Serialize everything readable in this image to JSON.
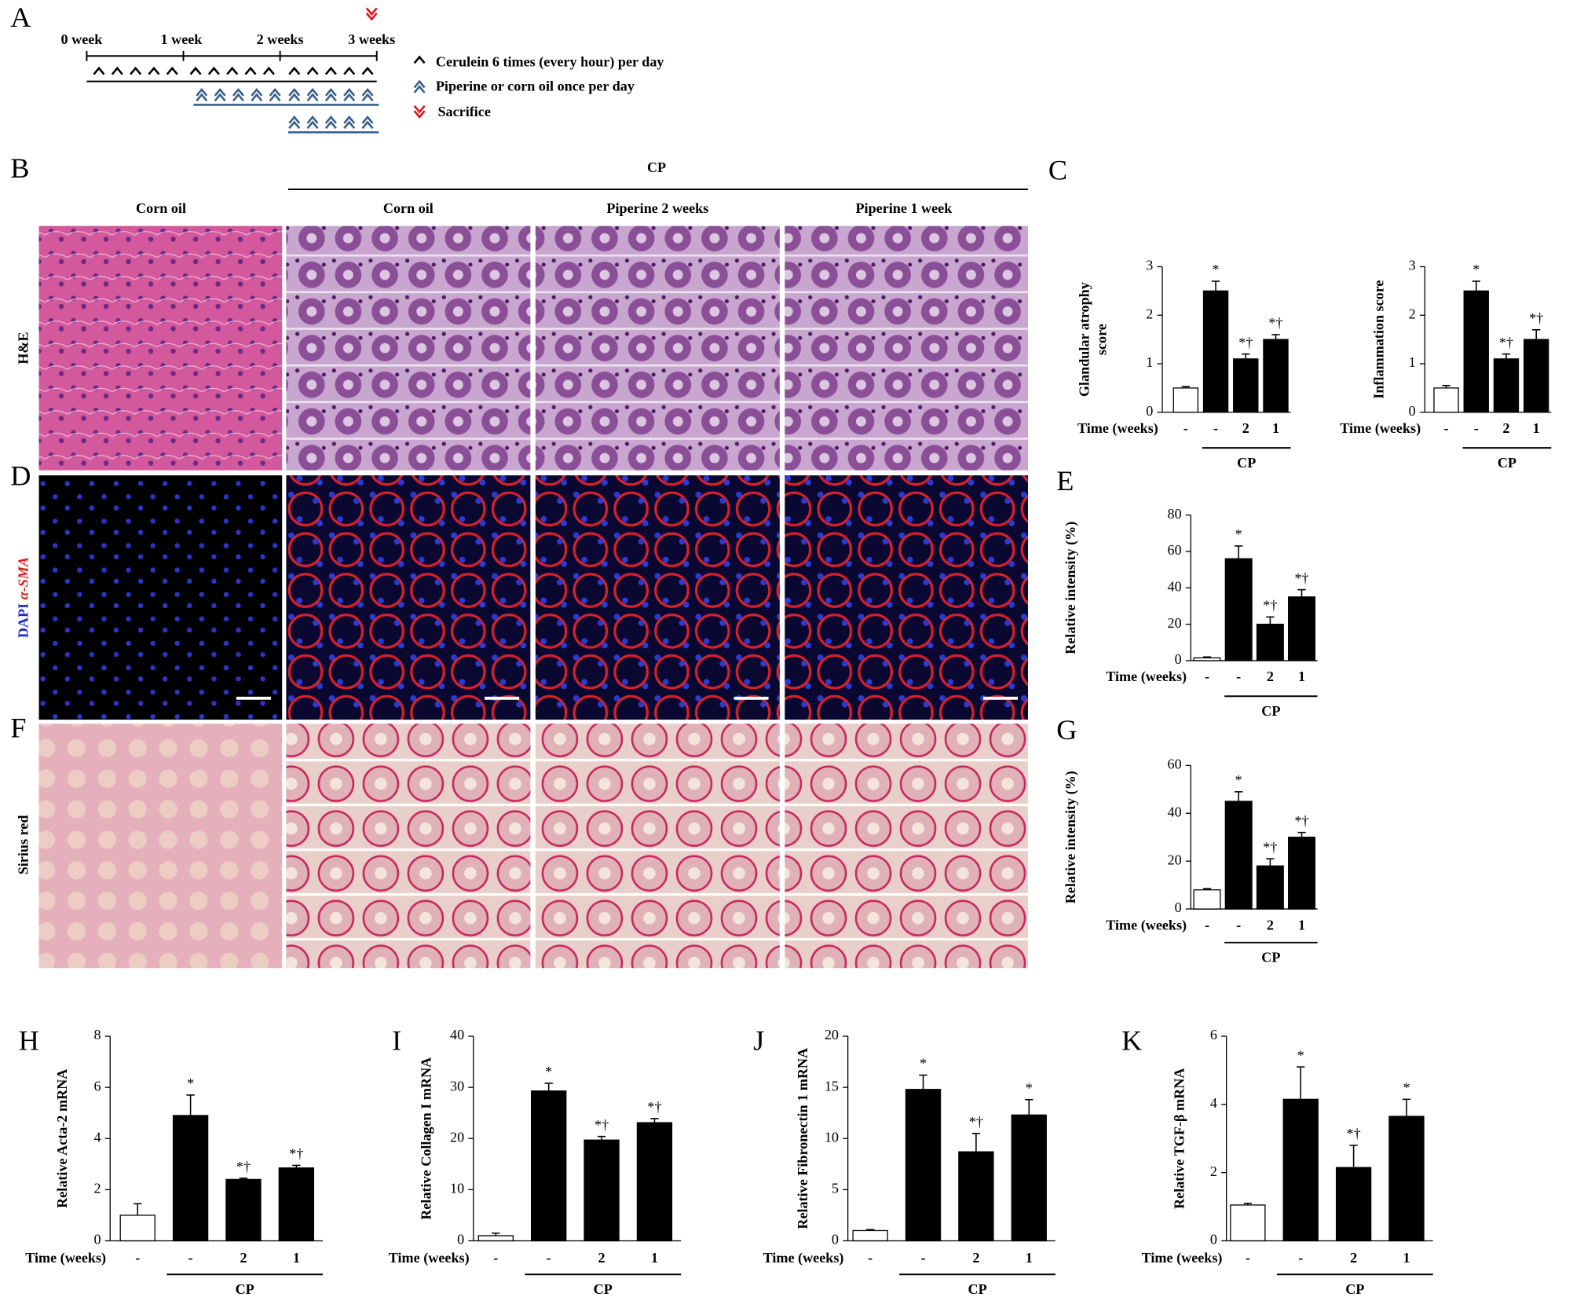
{
  "timeline": {
    "panel": "A",
    "weeks": [
      "0 week",
      "1 week",
      "2 weeks",
      "3 weeks"
    ],
    "legend": [
      "Cerulein 6 times (every hour) per day",
      "Piperine or corn oil once per day",
      "Sacrifice"
    ]
  },
  "micrographs": {
    "panels": [
      "B",
      "D",
      "F"
    ],
    "group": "CP",
    "columns": [
      "Corn oil",
      "Corn oil",
      "Piperine 2 weeks",
      "Piperine 1 week"
    ],
    "rows": [
      "H&E",
      "DAPI",
      "α-SMA",
      "Sirius red"
    ]
  },
  "chart_data": [
    {
      "type": "bar",
      "panel": "C",
      "y_label": [
        "Glandular atrophy",
        "score"
      ],
      "x_title": "Time (weeks)",
      "group_label": "CP",
      "categories": [
        "-",
        "-",
        "2",
        "1"
      ],
      "values": [
        0.5,
        2.5,
        1.1,
        1.5
      ],
      "errors": [
        0.03,
        0.2,
        0.1,
        0.1
      ],
      "annotations": [
        null,
        "*",
        "*†",
        "*†"
      ],
      "colors": [
        "#ffffff",
        "#000000",
        "#000000",
        "#000000"
      ],
      "ylim": [
        0,
        3
      ],
      "yticks": [
        0,
        1,
        2,
        3
      ]
    },
    {
      "type": "bar",
      "y_label": "Inflammation score",
      "x_title": "Time (weeks)",
      "group_label": "CP",
      "categories": [
        "-",
        "-",
        "2",
        "1"
      ],
      "values": [
        0.5,
        2.5,
        1.1,
        1.5
      ],
      "errors": [
        0.05,
        0.2,
        0.1,
        0.2
      ],
      "annotations": [
        null,
        "*",
        "*†",
        "*†"
      ],
      "colors": [
        "#ffffff",
        "#000000",
        "#000000",
        "#000000"
      ],
      "ylim": [
        0,
        3
      ],
      "yticks": [
        0,
        1,
        2,
        3
      ]
    },
    {
      "type": "bar",
      "panel": "E",
      "y_label": "Relative intensity (%)",
      "x_title": "Time (weeks)",
      "group_label": "CP",
      "categories": [
        "-",
        "-",
        "2",
        "1"
      ],
      "values": [
        1.5,
        56,
        20,
        35
      ],
      "errors": [
        0.5,
        7,
        4,
        4
      ],
      "annotations": [
        null,
        "*",
        "*†",
        "*†"
      ],
      "colors": [
        "#ffffff",
        "#000000",
        "#000000",
        "#000000"
      ],
      "ylim": [
        0,
        80
      ],
      "yticks": [
        0,
        20,
        40,
        60,
        80
      ]
    },
    {
      "type": "bar",
      "panel": "G",
      "y_label": "Relative intensity (%)",
      "x_title": "Time (weeks)",
      "group_label": "CP",
      "categories": [
        "-",
        "-",
        "2",
        "1"
      ],
      "values": [
        8,
        45,
        18,
        30
      ],
      "errors": [
        0.5,
        4,
        3,
        2
      ],
      "annotations": [
        null,
        "*",
        "*†",
        "*†"
      ],
      "colors": [
        "#ffffff",
        "#000000",
        "#000000",
        "#000000"
      ],
      "ylim": [
        0,
        60
      ],
      "yticks": [
        0,
        20,
        40,
        60
      ]
    },
    {
      "type": "bar",
      "panel": "H",
      "y_label": "Relative  Acta-2 mRNA",
      "x_title": "Time (weeks)",
      "group_label": "CP",
      "categories": [
        "-",
        "-",
        "2",
        "1"
      ],
      "values": [
        1.0,
        4.9,
        2.4,
        2.85
      ],
      "errors": [
        0.45,
        0.8,
        0.05,
        0.1
      ],
      "annotations": [
        null,
        "*",
        "*†",
        "*†"
      ],
      "colors": [
        "#ffffff",
        "#000000",
        "#000000",
        "#000000"
      ],
      "ylim": [
        0,
        8
      ],
      "yticks": [
        0,
        2,
        4,
        6,
        8
      ]
    },
    {
      "type": "bar",
      "panel": "I",
      "y_label": "Relative  Collagen I mRNA",
      "x_title": "Time (weeks)",
      "group_label": "CP",
      "categories": [
        "-",
        "-",
        "2",
        "1"
      ],
      "values": [
        1,
        29.3,
        19.7,
        23.1
      ],
      "errors": [
        0.5,
        1.5,
        0.7,
        0.8
      ],
      "annotations": [
        null,
        "*",
        "*†",
        "*†"
      ],
      "colors": [
        "#ffffff",
        "#000000",
        "#000000",
        "#000000"
      ],
      "ylim": [
        0,
        40
      ],
      "yticks": [
        0,
        10,
        20,
        30,
        40
      ]
    },
    {
      "type": "bar",
      "panel": "J",
      "y_label": "Relative Fibronectin 1 mRNA",
      "x_title": "Time (weeks)",
      "group_label": "CP",
      "categories": [
        "-",
        "-",
        "2",
        "1"
      ],
      "values": [
        1,
        14.8,
        8.7,
        12.3
      ],
      "errors": [
        0.1,
        1.4,
        1.8,
        1.5
      ],
      "annotations": [
        null,
        "*",
        "*†",
        "*"
      ],
      "colors": [
        "#ffffff",
        "#000000",
        "#000000",
        "#000000"
      ],
      "ylim": [
        0,
        20
      ],
      "yticks": [
        0,
        5,
        10,
        15,
        20
      ]
    },
    {
      "type": "bar",
      "panel": "K",
      "y_label": "Relative  TGF-β mRNA",
      "x_title": "Time (weeks)",
      "group_label": "CP",
      "categories": [
        "-",
        "-",
        "2",
        "1"
      ],
      "values": [
        1.05,
        4.15,
        2.15,
        3.65
      ],
      "errors": [
        0.05,
        0.95,
        0.65,
        0.5
      ],
      "annotations": [
        null,
        "*",
        "*†",
        "*"
      ],
      "colors": [
        "#ffffff",
        "#000000",
        "#000000",
        "#000000"
      ],
      "ylim": [
        0,
        6
      ],
      "yticks": [
        0,
        2,
        4,
        6
      ]
    }
  ]
}
